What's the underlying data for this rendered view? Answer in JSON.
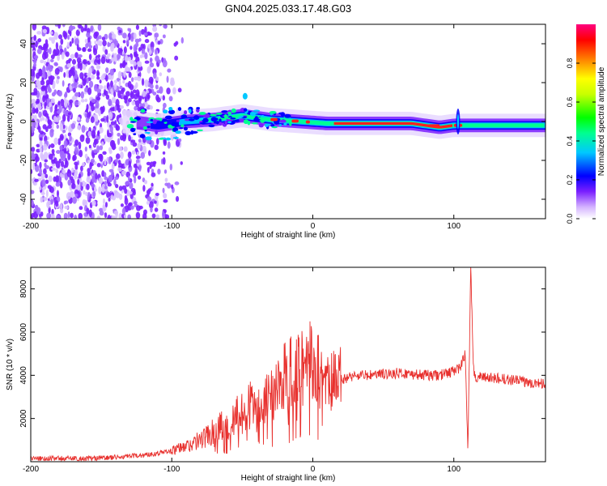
{
  "title": "GN04.2025.033.17.48.G03",
  "chart_data": [
    {
      "type": "heatmap",
      "ylabel": "Frequency (Hz)",
      "xlabel": "Height of straight line (km)",
      "xlim": [
        -200,
        165
      ],
      "ylim": [
        -50,
        50
      ],
      "x_ticks": [
        "-200",
        "-100",
        "0",
        "100"
      ],
      "y_ticks": [
        "40",
        "20",
        "0",
        "-20",
        "-40"
      ],
      "colorbar": {
        "label": "Normalized spectral amplitude",
        "range": [
          0,
          1
        ],
        "ticks": [
          "0.0",
          "0.2",
          "0.4",
          "0.6",
          "0.8"
        ]
      },
      "ridge": {
        "x": [
          -130,
          -110,
          -90,
          -70,
          -50,
          -30,
          -10,
          10,
          30,
          50,
          70,
          90,
          100,
          110,
          130,
          150,
          165
        ],
        "y": [
          0,
          -2,
          0,
          1,
          3,
          1,
          0,
          -1,
          -1,
          -1,
          -1,
          -3,
          -2,
          -2,
          -2,
          -2,
          -2
        ]
      }
    },
    {
      "type": "line",
      "ylabel": "SNR (10 * v/v)",
      "xlabel": "Height of straight line (km)",
      "xlim": [
        -200,
        165
      ],
      "ylim": [
        0,
        9000
      ],
      "x_ticks": [
        "-200",
        "-100",
        "0",
        "100"
      ],
      "y_ticks": [
        "8000",
        "6000",
        "4000",
        "2000"
      ],
      "color": "#e8312e",
      "series": [
        {
          "x": [
            -200,
            -180,
            -160,
            -140,
            -120,
            -100,
            -90,
            -80,
            -70,
            -60,
            -50,
            -40,
            -30,
            -20,
            -10,
            0,
            10,
            20,
            30,
            40,
            50,
            60,
            70,
            80,
            90,
            95,
            100,
            105,
            108,
            110,
            112,
            114,
            116,
            120,
            130,
            140,
            150,
            160,
            165
          ],
          "y": [
            150,
            150,
            150,
            200,
            300,
            500,
            700,
            1000,
            1400,
            1800,
            2300,
            2800,
            3300,
            3800,
            4300,
            4700,
            3400,
            3800,
            4000,
            4000,
            4050,
            4100,
            4050,
            4000,
            4000,
            4100,
            4200,
            4400,
            5000,
            600,
            9000,
            4200,
            3900,
            3900,
            3850,
            3800,
            3700,
            3650,
            3600
          ]
        }
      ]
    }
  ]
}
